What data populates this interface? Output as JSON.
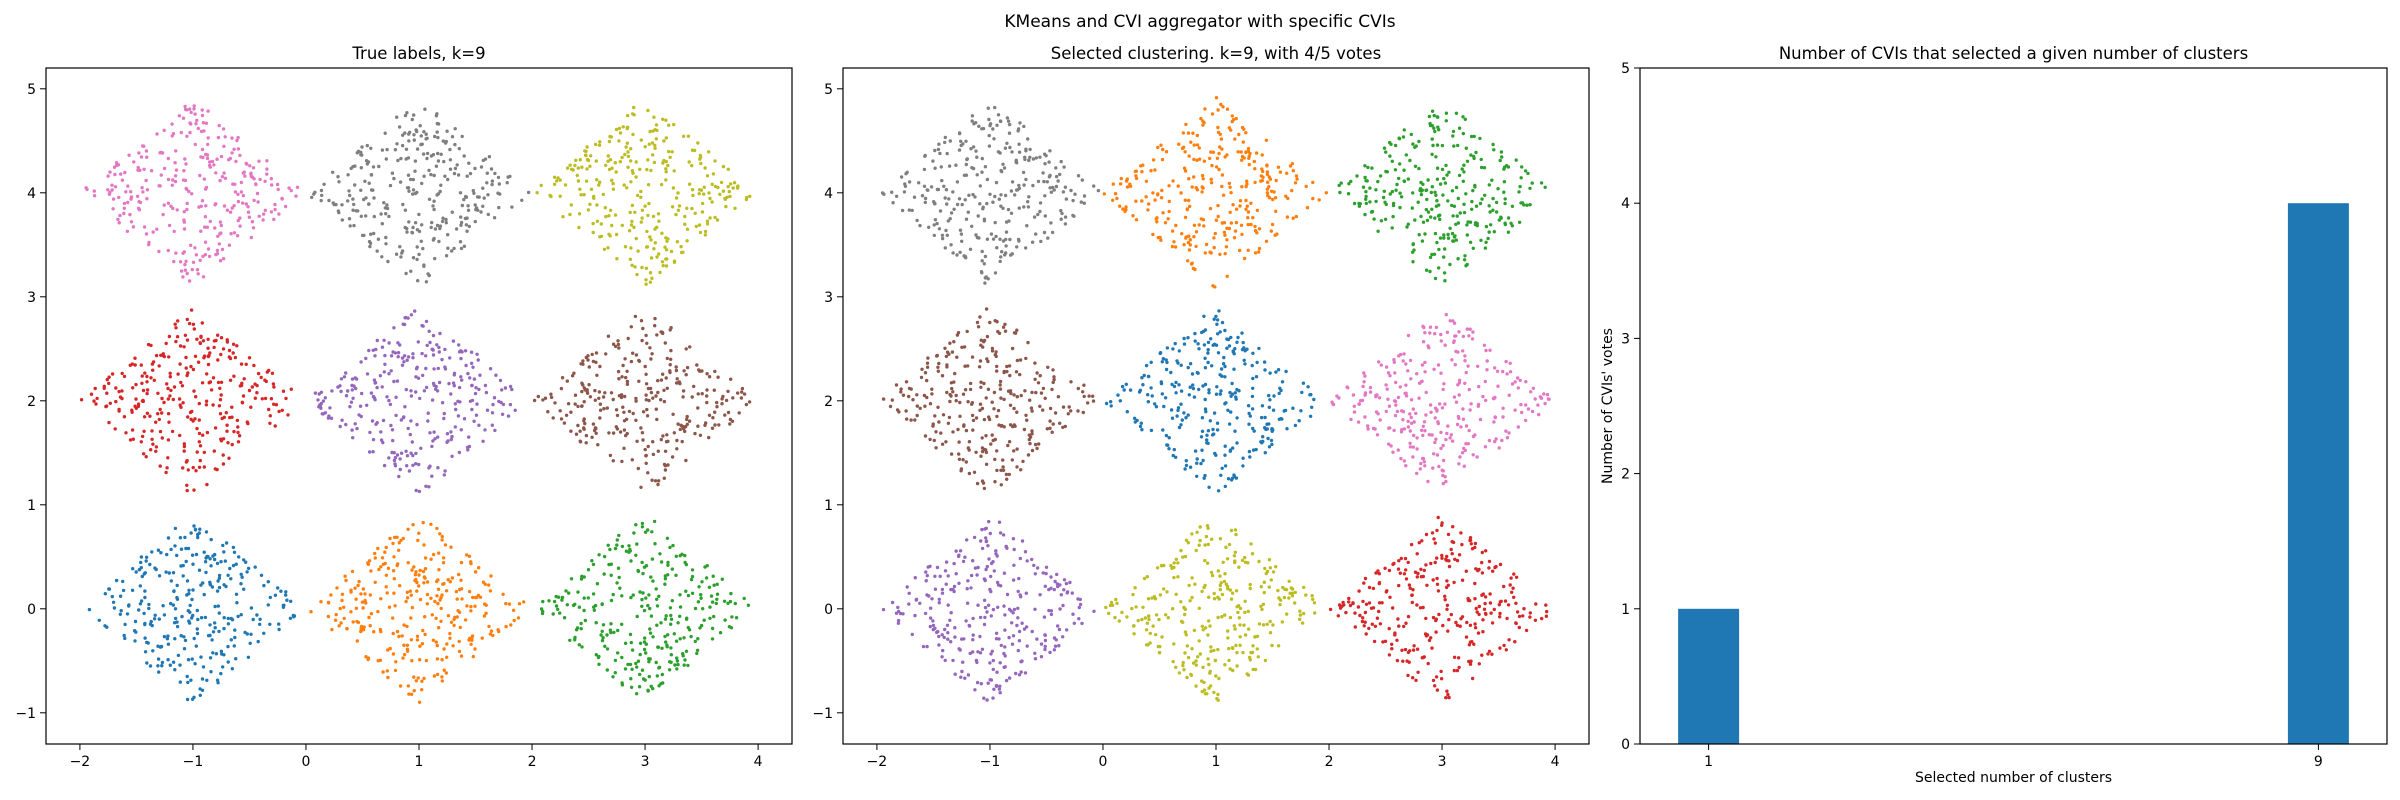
{
  "suptitle": "KMeans and CVI aggregator with specific CVIs",
  "chart_data": [
    {
      "type": "scatter",
      "title": "True labels, k=9",
      "xlabel": "",
      "ylabel": "",
      "xlim": [
        -2.3,
        4.3
      ],
      "ylim": [
        -1.3,
        5.2
      ],
      "xticks": [
        -2,
        -1,
        0,
        1,
        2,
        3,
        4
      ],
      "yticks": [
        -1,
        0,
        1,
        2,
        3,
        4,
        5
      ],
      "cluster_shape": "diamond, half-width 1.0",
      "points_per_cluster": 300,
      "clusters": [
        {
          "center": [
            -1,
            0
          ],
          "color": "#1f77b4"
        },
        {
          "center": [
            1,
            0
          ],
          "color": "#ff7f0e"
        },
        {
          "center": [
            3,
            0
          ],
          "color": "#2ca02c"
        },
        {
          "center": [
            -1,
            2
          ],
          "color": "#d62728"
        },
        {
          "center": [
            1,
            2
          ],
          "color": "#9467bd"
        },
        {
          "center": [
            3,
            2
          ],
          "color": "#8c564b"
        },
        {
          "center": [
            -1,
            4
          ],
          "color": "#e377c2"
        },
        {
          "center": [
            1,
            4
          ],
          "color": "#7f7f7f"
        },
        {
          "center": [
            3,
            4
          ],
          "color": "#bcbd22"
        }
      ]
    },
    {
      "type": "scatter",
      "title": "Selected clustering. k=9, with 4/5 votes",
      "xlabel": "",
      "ylabel": "",
      "xlim": [
        -2.3,
        4.3
      ],
      "ylim": [
        -1.3,
        5.2
      ],
      "xticks": [
        -2,
        -1,
        0,
        1,
        2,
        3,
        4
      ],
      "yticks": [
        -1,
        0,
        1,
        2,
        3,
        4,
        5
      ],
      "cluster_shape": "diamond, half-width 1.0",
      "points_per_cluster": 300,
      "clusters": [
        {
          "center": [
            -1,
            0
          ],
          "color": "#9467bd"
        },
        {
          "center": [
            1,
            0
          ],
          "color": "#bcbd22"
        },
        {
          "center": [
            3,
            0
          ],
          "color": "#d62728"
        },
        {
          "center": [
            -1,
            2
          ],
          "color": "#8c564b"
        },
        {
          "center": [
            1,
            2
          ],
          "color": "#1f77b4"
        },
        {
          "center": [
            3,
            2
          ],
          "color": "#e377c2"
        },
        {
          "center": [
            -1,
            4
          ],
          "color": "#7f7f7f"
        },
        {
          "center": [
            1,
            4
          ],
          "color": "#ff7f0e"
        },
        {
          "center": [
            3,
            4
          ],
          "color": "#2ca02c"
        }
      ]
    },
    {
      "type": "bar",
      "title": "Number of CVIs that selected a given number of clusters",
      "xlabel": "Selected number of clusters",
      "ylabel": "Number of CVIs' votes",
      "x": [
        1,
        9
      ],
      "values": [
        1,
        4
      ],
      "xlim": [
        0.1,
        9.9
      ],
      "ylim": [
        0,
        5
      ],
      "xticks": [
        1,
        9
      ],
      "yticks": [
        0,
        1,
        2,
        3,
        4,
        5
      ],
      "bar_width": 0.8,
      "color": "#1f77b4"
    }
  ]
}
